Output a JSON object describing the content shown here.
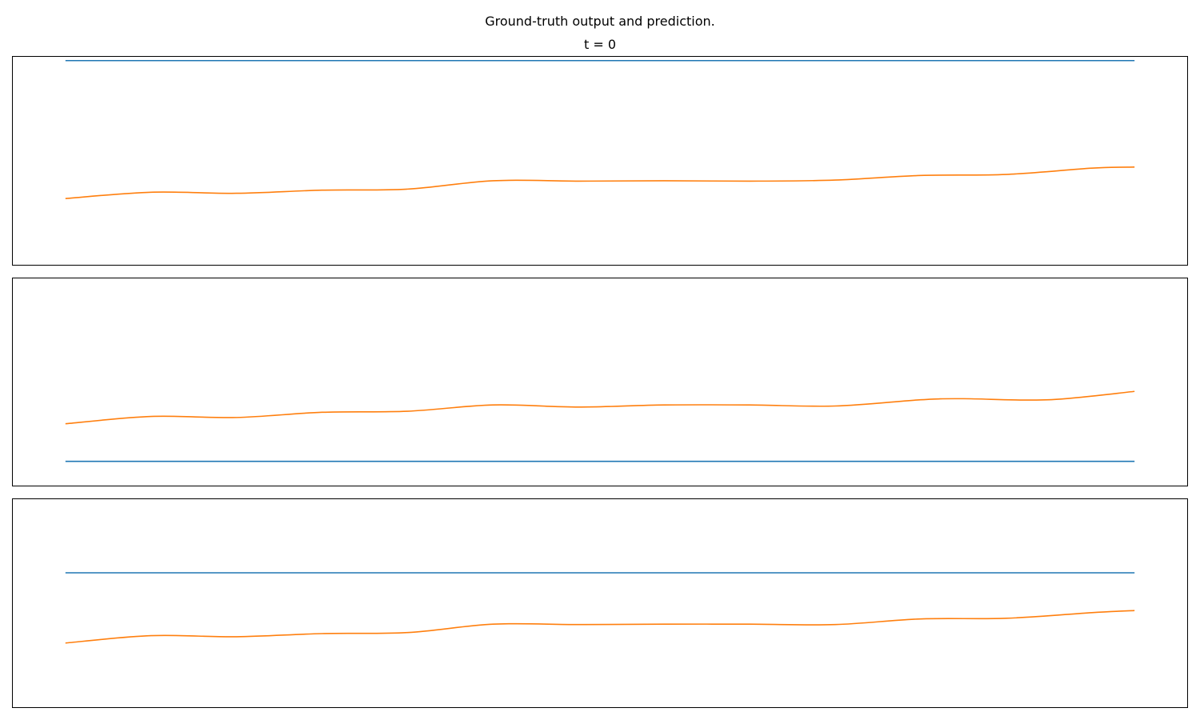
{
  "figure": {
    "title": "Ground-truth output and prediction."
  },
  "chart_data": [
    {
      "type": "line",
      "title": "t = 0",
      "xlabel": "",
      "ylabel": "",
      "xlim": [
        -0.05,
        1.05
      ],
      "ylim": [
        0,
        1
      ],
      "grid": false,
      "ticks_visible": false,
      "series": [
        {
          "color": "#1f77b4",
          "x": [
            0,
            1
          ],
          "y": [
            0.978,
            0.978
          ]
        },
        {
          "color": "#ff7f0e",
          "x": [
            0,
            0.08,
            0.16,
            0.24,
            0.32,
            0.4,
            0.48,
            0.56,
            0.64,
            0.72,
            0.8,
            0.88,
            0.96,
            1.0
          ],
          "y": [
            0.32,
            0.35,
            0.345,
            0.36,
            0.365,
            0.405,
            0.403,
            0.405,
            0.403,
            0.408,
            0.43,
            0.435,
            0.465,
            0.47
          ]
        }
      ]
    },
    {
      "type": "line",
      "title": "",
      "xlabel": "",
      "ylabel": "",
      "xlim": [
        -0.05,
        1.05
      ],
      "ylim": [
        0,
        1
      ],
      "grid": false,
      "ticks_visible": false,
      "series": [
        {
          "color": "#1f77b4",
          "x": [
            0,
            1
          ],
          "y": [
            0.12,
            0.12
          ]
        },
        {
          "color": "#ff7f0e",
          "x": [
            0,
            0.08,
            0.16,
            0.24,
            0.32,
            0.4,
            0.48,
            0.56,
            0.64,
            0.72,
            0.8,
            0.84,
            0.92,
            1.0
          ],
          "y": [
            0.3,
            0.335,
            0.33,
            0.355,
            0.36,
            0.39,
            0.38,
            0.39,
            0.39,
            0.385,
            0.415,
            0.42,
            0.415,
            0.455
          ]
        }
      ]
    },
    {
      "type": "line",
      "title": "",
      "xlabel": "",
      "ylabel": "",
      "xlim": [
        -0.05,
        1.05
      ],
      "ylim": [
        0,
        1
      ],
      "grid": false,
      "ticks_visible": false,
      "series": [
        {
          "color": "#1f77b4",
          "x": [
            0,
            1
          ],
          "y": [
            0.645,
            0.645
          ]
        },
        {
          "color": "#ff7f0e",
          "x": [
            0,
            0.08,
            0.16,
            0.24,
            0.32,
            0.4,
            0.48,
            0.56,
            0.64,
            0.72,
            0.8,
            0.88,
            0.96,
            1.0
          ],
          "y": [
            0.31,
            0.345,
            0.34,
            0.355,
            0.36,
            0.4,
            0.398,
            0.4,
            0.4,
            0.398,
            0.425,
            0.428,
            0.455,
            0.465
          ]
        }
      ]
    }
  ]
}
